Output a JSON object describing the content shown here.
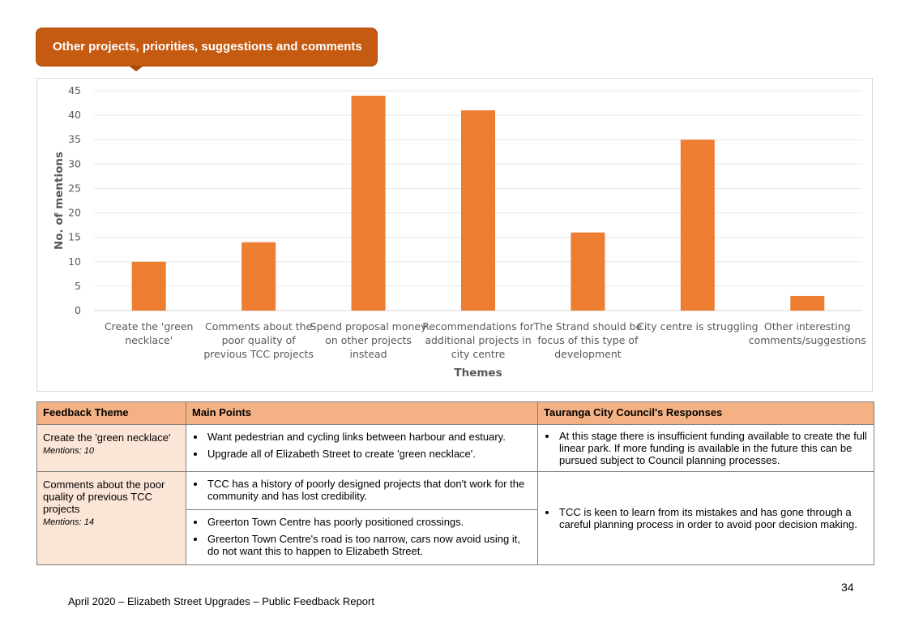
{
  "banner": {
    "title": "Other projects, priorities, suggestions and comments"
  },
  "chart_data": {
    "type": "bar",
    "categories": [
      [
        "Create the 'green",
        "necklace'"
      ],
      [
        "Comments about the",
        "poor quality of",
        "previous TCC projects"
      ],
      [
        "Spend proposal money",
        "on other projects",
        "instead"
      ],
      [
        "Recommendations for",
        "additional projects in",
        "city centre"
      ],
      [
        "The Strand should be",
        "focus of this type of",
        "development"
      ],
      [
        "City centre is struggling"
      ],
      [
        "Other interesting",
        "comments/suggestions"
      ]
    ],
    "values": [
      10,
      14,
      44,
      41,
      16,
      35,
      3
    ],
    "xlabel": "Themes",
    "ylabel": "No. of mentions",
    "ylim": [
      0,
      45
    ],
    "yticks": [
      0,
      5,
      10,
      15,
      20,
      25,
      30,
      35,
      40,
      45
    ],
    "grid": true,
    "color": "#ed7d31"
  },
  "table": {
    "headers": [
      "Feedback Theme",
      "Main Points",
      "Tauranga City Council's Responses"
    ],
    "rows": [
      {
        "theme": "Create the 'green necklace'",
        "mentions": "Mentions: 10",
        "points": [
          "Want pedestrian and cycling links between harbour and estuary.",
          "Upgrade all of Elizabeth Street to create 'green necklace'."
        ],
        "response": "At this stage there is insufficient funding available to create the full linear park. If more funding is available in the future this can be pursued subject to Council planning processes."
      },
      {
        "theme": "Comments about the poor quality of previous TCC projects",
        "mentions": "Mentions: 14",
        "points_a": [
          "TCC has a history of poorly designed projects that don't work for the community and has lost credibility."
        ],
        "points_b": [
          "Greerton Town Centre has poorly positioned crossings.",
          "Greerton Town Centre's road is too narrow, cars now avoid using it, do not want this to happen to Elizabeth Street."
        ],
        "response": "TCC is keen to learn from its mistakes and has gone through a careful planning process in order to avoid poor decision making."
      }
    ]
  },
  "footer": {
    "page_number": "34",
    "text": "April 2020 – Elizabeth Street Upgrades – Public Feedback Report"
  }
}
